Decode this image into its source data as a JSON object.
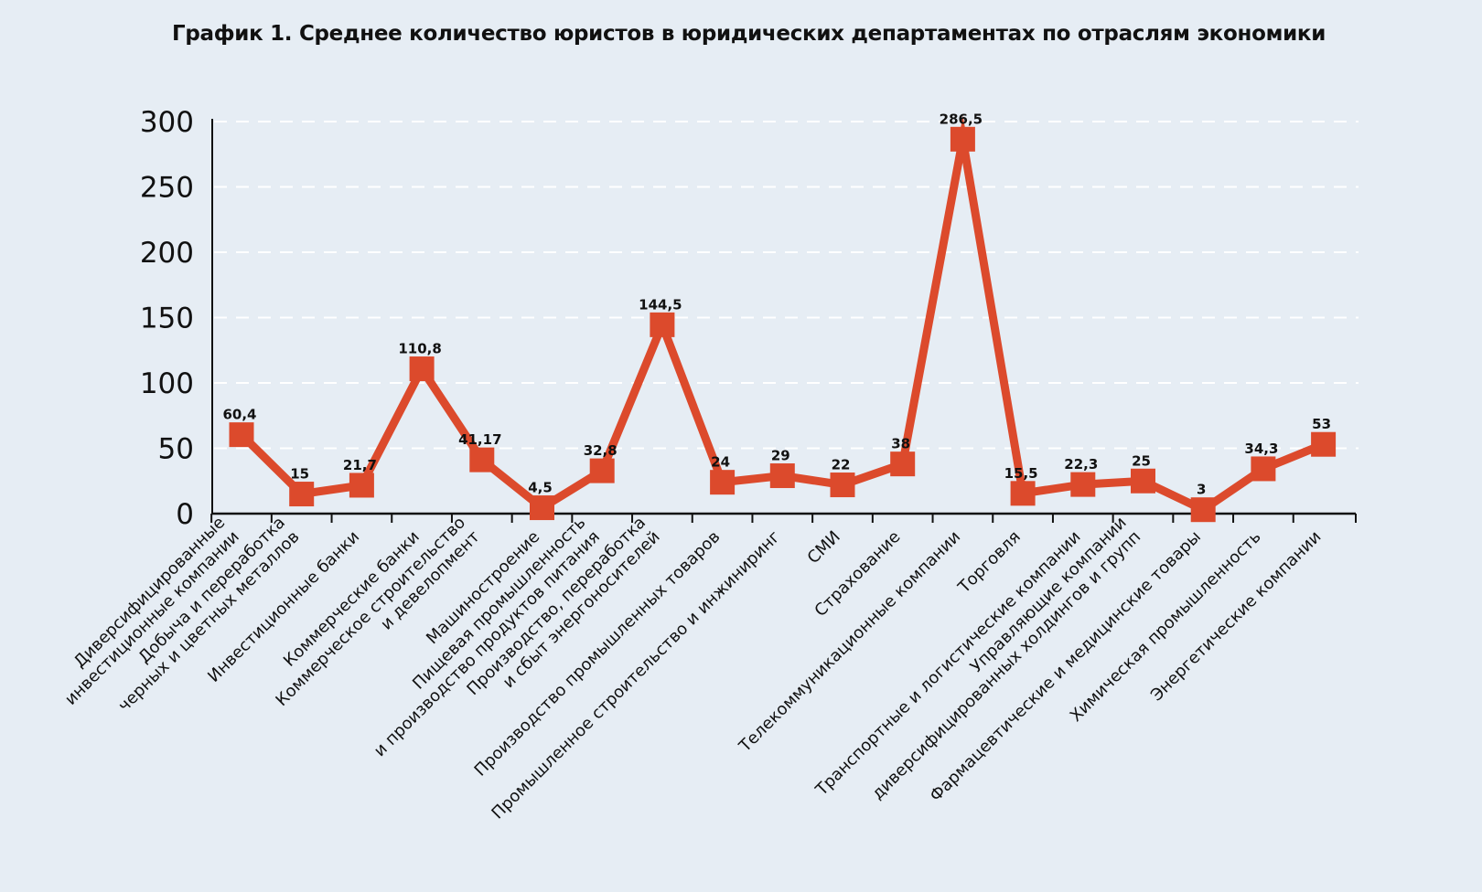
{
  "chart_data": {
    "type": "line",
    "title": "График 1. Среднее количество юристов в юридических департаментах по отраслям экономики",
    "xlabel": "",
    "ylabel": "",
    "ylim": [
      0,
      300
    ],
    "yticks": [
      0,
      50,
      100,
      150,
      200,
      250,
      300
    ],
    "grid": "horizontal-dashed",
    "line_color": "#dc4a2c",
    "background": "#e6edf4",
    "categories": [
      [
        "Диверсифицированные",
        "инвестиционные компании"
      ],
      [
        "Добыча и переработка",
        "черных и цветных металлов"
      ],
      [
        "Инвестиционные банки"
      ],
      [
        "Коммерческие банки"
      ],
      [
        "Коммерческое строительство",
        "и девелопмент"
      ],
      [
        "Машиностроение"
      ],
      [
        "Пищевая промышленность",
        "и производство продуктов питания"
      ],
      [
        "Производство, переработка",
        "и сбыт энергоносителей"
      ],
      [
        "Производство промышленных товаров"
      ],
      [
        "Промышленное строительство и инжиниринг"
      ],
      [
        "СМИ"
      ],
      [
        "Страхование"
      ],
      [
        "Телекоммуникационные компании"
      ],
      [
        "Торговля"
      ],
      [
        "Транспортные и логистические компании"
      ],
      [
        "Управляющие компании",
        "диверсифицированных холдингов и групп"
      ],
      [
        "Фармацевтические и медицинские товары"
      ],
      [
        "Химическая промышленность"
      ],
      [
        "Энергетические компании"
      ]
    ],
    "values": [
      60.4,
      15,
      21.7,
      110.8,
      41.17,
      4.5,
      32.8,
      144.5,
      24,
      29,
      22,
      38,
      286.5,
      15.5,
      22.3,
      25,
      3,
      34.3,
      53
    ],
    "value_labels": [
      "60,4",
      "15",
      "21,7",
      "110,8",
      "41,17",
      "4,5",
      "32,8",
      "144,5",
      "24",
      "29",
      "22",
      "38",
      "286,5",
      "15,5",
      "22,3",
      "25",
      "3",
      "34,3",
      "53"
    ]
  }
}
